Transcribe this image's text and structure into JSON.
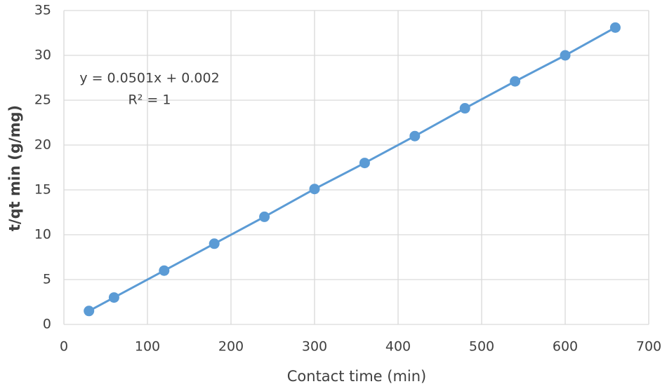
{
  "chart_data": {
    "type": "scatter",
    "x_label": "Contact time (min)",
    "y_label": "t/qt min (g/mg)",
    "annotations": [
      "y = 0.0501x + 0.002",
      "R² = 1"
    ],
    "series": [
      {
        "color": "#5b9bd5",
        "x": [
          30,
          60,
          120,
          180,
          240,
          300,
          360,
          420,
          480,
          540,
          600,
          660
        ],
        "values": [
          1.5,
          3.0,
          6.0,
          9.0,
          12.0,
          15.1,
          18.0,
          21.0,
          24.1,
          27.1,
          30.0,
          33.1
        ]
      }
    ],
    "xlim": [
      0,
      700
    ],
    "xticks": [
      0,
      100,
      200,
      300,
      400,
      500,
      600,
      700
    ],
    "ylim": [
      0,
      35
    ],
    "yticks": [
      0,
      5,
      10,
      15,
      20,
      25,
      30,
      35
    ],
    "grid": true
  }
}
